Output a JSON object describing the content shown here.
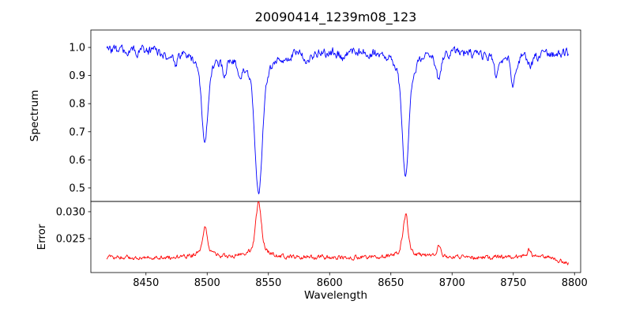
{
  "figure": {
    "title": "20090414_1239m08_123",
    "background": "#ffffff",
    "frame_color": "#000000"
  },
  "chart_data": [
    {
      "type": "line",
      "name": "spectrum",
      "title": "20090414_1239m08_123",
      "xlabel": "Wavelength",
      "ylabel": "Spectrum",
      "grid": false,
      "legend": "none",
      "color": "#0000ff",
      "xlim": [
        8405,
        8805
      ],
      "ylim": [
        0.452,
        1.062
      ],
      "xticks": [
        "8450",
        "8500",
        "8550",
        "8600",
        "8650",
        "8700",
        "8750",
        "8800"
      ],
      "yticks": [
        "0.5",
        "0.6",
        "0.7",
        "0.8",
        "0.9",
        "1.0"
      ],
      "x_start": 8418,
      "x_end": 8795,
      "x_step": 0.5,
      "continuum_level": 0.985,
      "noise_peak_to_peak": 0.05,
      "absorption_features": [
        {
          "center": 8498,
          "min_flux": 0.665,
          "depth": 0.315,
          "width": 2.3
        },
        {
          "center": 8542,
          "min_flux": 0.49,
          "depth": 0.5,
          "width": 2.8
        },
        {
          "center": 8662,
          "min_flux": 0.535,
          "depth": 0.45,
          "width": 2.5
        },
        {
          "center": 8468,
          "min_flux": 0.95,
          "depth": 0.04,
          "width": 1.5
        },
        {
          "center": 8474,
          "min_flux": 0.95,
          "depth": 0.035,
          "width": 1.5
        },
        {
          "center": 8514,
          "min_flux": 0.92,
          "depth": 0.055,
          "width": 1.6
        },
        {
          "center": 8527,
          "min_flux": 0.94,
          "depth": 0.045,
          "width": 1.5
        },
        {
          "center": 8582,
          "min_flux": 0.95,
          "depth": 0.035,
          "width": 1.4
        },
        {
          "center": 8611,
          "min_flux": 0.955,
          "depth": 0.03,
          "width": 1.4
        },
        {
          "center": 8689,
          "min_flux": 0.89,
          "depth": 0.09,
          "width": 1.8
        },
        {
          "center": 8736,
          "min_flux": 0.9,
          "depth": 0.08,
          "width": 1.6
        },
        {
          "center": 8750,
          "min_flux": 0.87,
          "depth": 0.11,
          "width": 1.6
        },
        {
          "center": 8764,
          "min_flux": 0.93,
          "depth": 0.05,
          "width": 1.4
        }
      ]
    },
    {
      "type": "line",
      "name": "error",
      "xlabel": "Wavelength",
      "ylabel": "Error",
      "grid": false,
      "legend": "none",
      "color": "#ff0000",
      "xlim": [
        8405,
        8805
      ],
      "ylim": [
        0.0187,
        0.0319
      ],
      "xticks": [
        "8450",
        "8500",
        "8550",
        "8600",
        "8650",
        "8700",
        "8750",
        "8800"
      ],
      "yticks": [
        "0.025",
        "0.030"
      ],
      "x_start": 8418,
      "x_end": 8795,
      "x_step": 0.5,
      "baseline_level": 0.0215,
      "noise_peak_to_peak": 0.001,
      "peaks": [
        {
          "center": 8498,
          "max_error": 0.0272,
          "height": 0.0056,
          "width": 1.9
        },
        {
          "center": 8542,
          "max_error": 0.0315,
          "height": 0.01,
          "width": 2.1
        },
        {
          "center": 8662,
          "max_error": 0.0295,
          "height": 0.0079,
          "width": 1.9
        },
        {
          "center": 8689,
          "max_error": 0.0234,
          "height": 0.0018,
          "width": 1.6
        },
        {
          "center": 8763,
          "max_error": 0.0229,
          "height": 0.0013,
          "width": 1.5
        }
      ],
      "right_edge_droop": {
        "start": 8775,
        "drop": 0.0009
      }
    }
  ]
}
